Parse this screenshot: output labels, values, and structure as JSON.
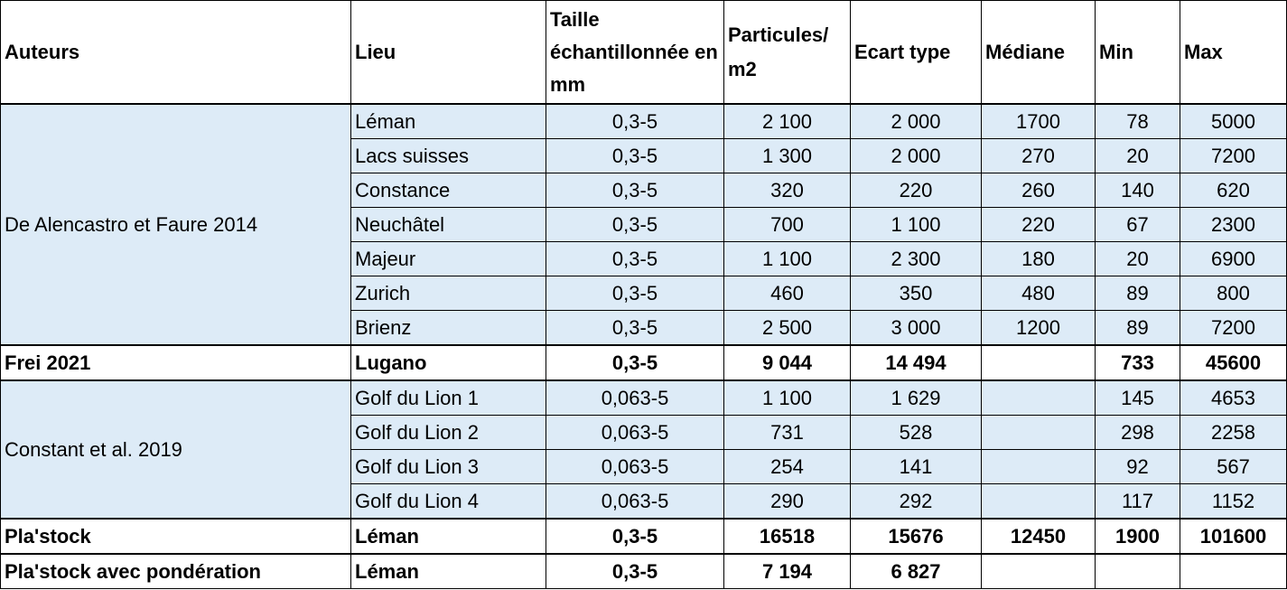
{
  "headers": [
    "Auteurs",
    "Lieu",
    "Taille échantillonnée en mm",
    "Particules/ m2",
    "Ecart type",
    "Médiane",
    "Min",
    "Max"
  ],
  "groups": [
    {
      "author": "De Alencastro et Faure 2014",
      "style": "blue",
      "rows": [
        [
          "Léman",
          "0,3-5",
          "2 100",
          "2 000",
          "1700",
          "78",
          "5000"
        ],
        [
          "Lacs suisses",
          "0,3-5",
          "1 300",
          "2 000",
          "270",
          "20",
          "7200"
        ],
        [
          "Constance",
          "0,3-5",
          "320",
          "220",
          "260",
          "140",
          "620"
        ],
        [
          "Neuchâtel",
          "0,3-5",
          "700",
          "1 100",
          "220",
          "67",
          "2300"
        ],
        [
          "Majeur",
          "0,3-5",
          "1 100",
          "2 300",
          "180",
          "20",
          "6900"
        ],
        [
          "Zurich",
          "0,3-5",
          "460",
          "350",
          "480",
          "89",
          "800"
        ],
        [
          "Brienz",
          "0,3-5",
          "2 500",
          "3 000",
          "1200",
          "89",
          "7200"
        ]
      ]
    },
    {
      "author": "Frei 2021",
      "style": "bold",
      "rows": [
        [
          "Lugano",
          "0,3-5",
          "9 044",
          "14 494",
          "",
          "733",
          "45600"
        ]
      ]
    },
    {
      "author": "Constant et al. 2019",
      "style": "blue",
      "rows": [
        [
          "Golf du Lion 1",
          "0,063-5",
          "1 100",
          "1 629",
          "",
          "145",
          "4653"
        ],
        [
          "Golf du Lion 2",
          "0,063-5",
          "731",
          "528",
          "",
          "298",
          "2258"
        ],
        [
          "Golf du Lion 3",
          "0,063-5",
          "254",
          "141",
          "",
          "92",
          "567"
        ],
        [
          "Golf du Lion 4",
          "0,063-5",
          "290",
          "292",
          "",
          "117",
          "1152"
        ]
      ]
    },
    {
      "author": "Pla'stock",
      "style": "bold",
      "rows": [
        [
          "Léman",
          "0,3-5",
          "16518",
          "15676",
          "12450",
          "1900",
          "101600"
        ]
      ]
    },
    {
      "author": "Pla'stock avec pondération",
      "style": "bold",
      "rows": [
        [
          "Léman",
          "0,3-5",
          "7 194",
          "6 827",
          "",
          "",
          ""
        ]
      ]
    }
  ],
  "colors": {
    "row_fill": "#ddebf7",
    "border": "#000000"
  }
}
